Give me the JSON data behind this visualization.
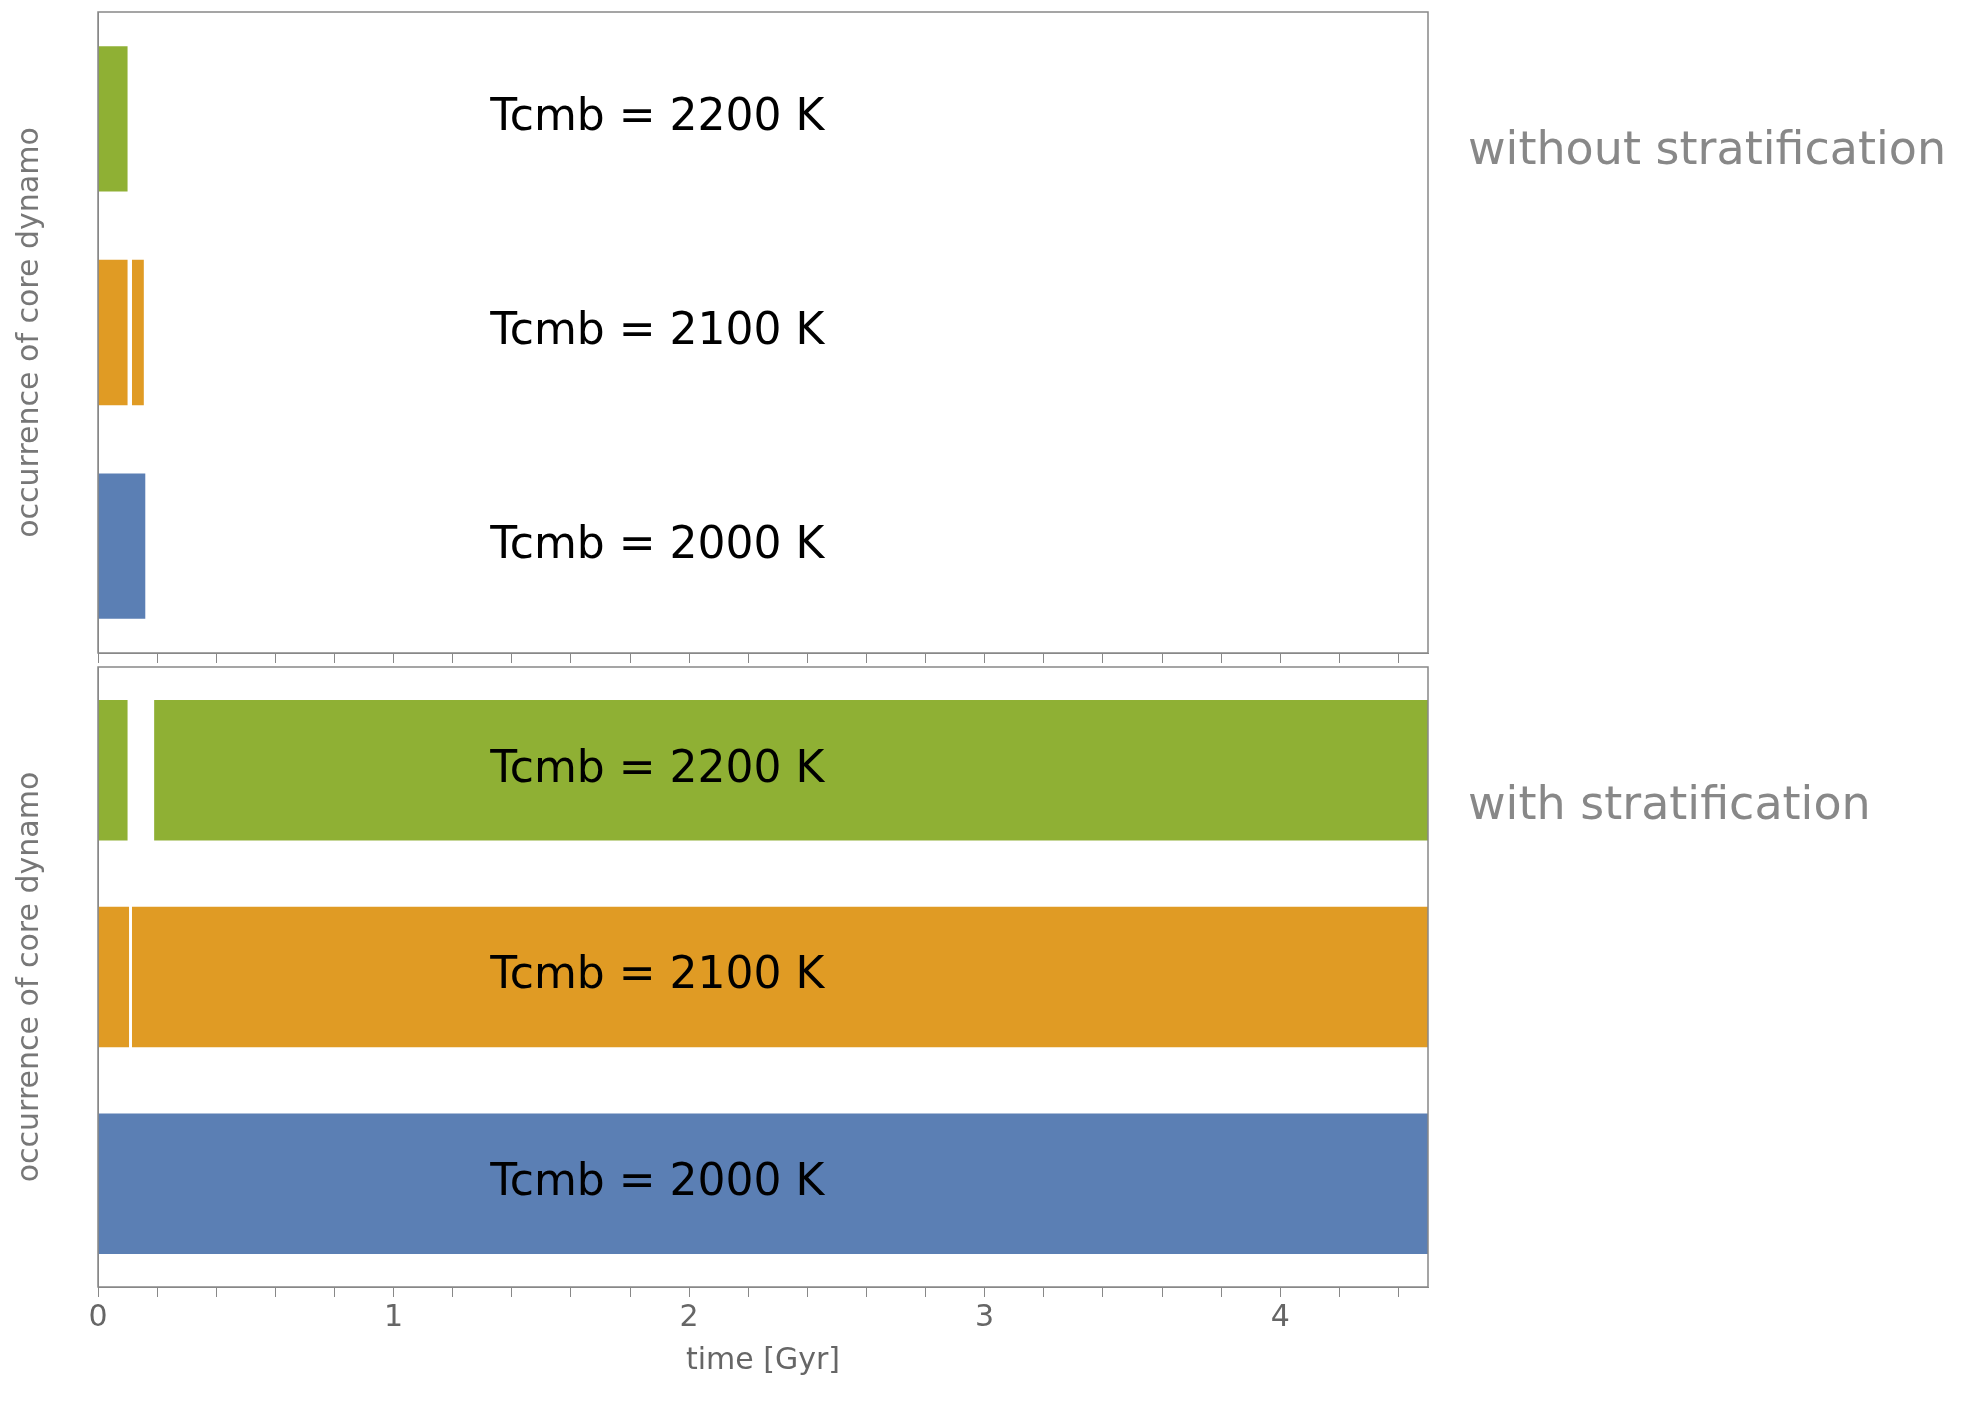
{
  "chart_data": [
    {
      "type": "bar",
      "orientation": "horizontal",
      "annotations": [
        "without stratification"
      ],
      "ylabel": "occurrence of core dynamo",
      "categories": [
        "Tcmb = 2200 K",
        "Tcmb = 2100 K",
        "Tcmb = 2000 K"
      ],
      "series": [
        {
          "values": [
            0.1,
            0.1,
            0.16
          ],
          "base": [
            0,
            0,
            0
          ],
          "colors": [
            "#8fb034",
            "#e09b24",
            "#5b7fb4"
          ]
        },
        {
          "values": [
            null,
            0.04,
            null
          ],
          "base": [
            null,
            0.115,
            null
          ],
          "colors": [
            "#8fb034",
            "#e09b24",
            "#5b7fb4"
          ]
        }
      ],
      "xlim": [
        0,
        4.5
      ],
      "xticks": [
        0,
        {
          "value": 0.2,
          "label": null
        },
        {
          "value": 0.4,
          "label": null
        },
        {
          "value": 0.6,
          "label": null
        },
        {
          "value": 0.8,
          "label": null
        },
        1,
        {
          "value": 1.2,
          "label": null
        },
        {
          "value": 1.4,
          "label": null
        },
        {
          "value": 1.6,
          "label": null
        },
        {
          "value": 1.8,
          "label": null
        },
        2,
        {
          "value": 2.2,
          "label": null
        },
        {
          "value": 2.4,
          "label": null
        },
        {
          "value": 2.6,
          "label": null
        },
        {
          "value": 2.8,
          "label": null
        },
        3,
        {
          "value": 3.2,
          "label": null
        },
        {
          "value": 3.4,
          "label": null
        },
        {
          "value": 3.6,
          "label": null
        },
        {
          "value": 3.8,
          "label": null
        },
        4,
        {
          "value": 4.2,
          "label": null
        },
        {
          "value": 4.4,
          "label": null
        }
      ],
      "tick_labels": false,
      "grid": false
    },
    {
      "type": "bar",
      "orientation": "horizontal",
      "annotations": [
        "with stratification"
      ],
      "ylabel": "occurrence of core dynamo",
      "xlabel": "time [Gyr]",
      "categories": [
        "Tcmb = 2200 K",
        "Tcmb = 2100 K",
        "Tcmb = 2000 K"
      ],
      "series": [
        {
          "values": [
            0.1,
            0.105,
            4.5
          ],
          "base": [
            0,
            0,
            0
          ],
          "colors": [
            "#8fb034",
            "#e09b24",
            "#5b7fb4"
          ]
        },
        {
          "values": [
            4.31,
            4.385,
            null
          ],
          "base": [
            0.19,
            0.115,
            null
          ],
          "colors": [
            "#8fb034",
            "#e09b24",
            "#5b7fb4"
          ]
        }
      ],
      "xlim": [
        0,
        4.5
      ],
      "xticks": [
        0,
        {
          "value": 0.2,
          "label": null
        },
        {
          "value": 0.4,
          "label": null
        },
        {
          "value": 0.6,
          "label": null
        },
        {
          "value": 0.8,
          "label": null
        },
        1,
        {
          "value": 1.2,
          "label": null
        },
        {
          "value": 1.4,
          "label": null
        },
        {
          "value": 1.6,
          "label": null
        },
        {
          "value": 1.8,
          "label": null
        },
        2,
        {
          "value": 2.2,
          "label": null
        },
        {
          "value": 2.4,
          "label": null
        },
        {
          "value": 2.6,
          "label": null
        },
        {
          "value": 2.8,
          "label": null
        },
        3,
        {
          "value": 3.2,
          "label": null
        },
        {
          "value": 3.4,
          "label": null
        },
        {
          "value": 3.6,
          "label": null
        },
        {
          "value": 3.8,
          "label": null
        },
        4,
        {
          "value": 4.2,
          "label": null
        },
        {
          "value": 4.4,
          "label": null
        }
      ],
      "tick_labels": "x",
      "grid": false
    }
  ]
}
